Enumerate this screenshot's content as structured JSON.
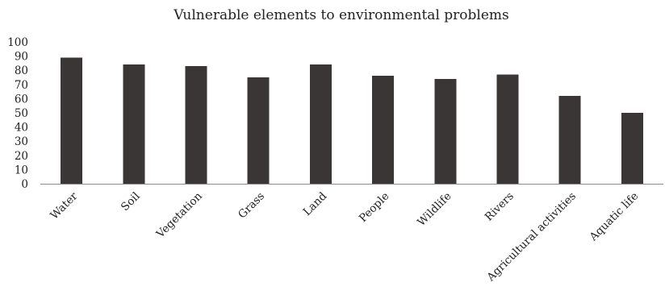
{
  "chart_data": {
    "type": "bar",
    "title": "Vulnerable elements to environmental problems",
    "xlabel": "",
    "ylabel": "",
    "categories": [
      "Water",
      "Soil",
      "Vegetation",
      "Grass",
      "Land",
      "People",
      "Wildlife",
      "Rivers",
      "Agricultural activities",
      "Aquatic life"
    ],
    "values": [
      89,
      84,
      83,
      75,
      84,
      76,
      74,
      77,
      62,
      50
    ],
    "ylim": [
      0,
      100
    ],
    "yticks": [
      "0",
      "10",
      "20",
      "30",
      "40",
      "50",
      "60",
      "70",
      "80",
      "90",
      "100"
    ],
    "grid": false,
    "legend": "none",
    "bar_color": "#3a3636"
  }
}
